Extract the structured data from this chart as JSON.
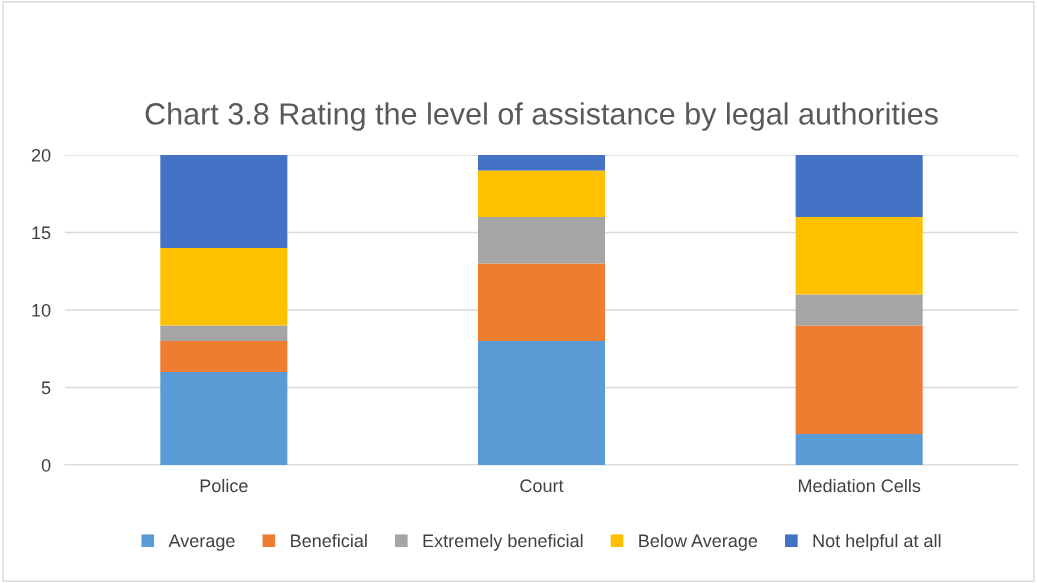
{
  "chart_data": {
    "type": "bar",
    "title": "Chart 3.8 Rating the level of assistance by legal authorities",
    "categories": [
      "Police",
      "Court",
      "Mediation Cells"
    ],
    "stacked": true,
    "series": [
      {
        "name": "Average",
        "color": "#5b9bd5",
        "values": [
          6,
          8,
          2
        ]
      },
      {
        "name": "Beneficial",
        "color": "#ed7d31",
        "values": [
          2,
          5,
          7
        ]
      },
      {
        "name": "Extremely beneficial",
        "color": "#a5a5a5",
        "values": [
          1,
          3,
          2
        ]
      },
      {
        "name": "Below Average",
        "color": "#ffc000",
        "values": [
          5,
          3,
          5
        ]
      },
      {
        "name": "Not helpful at all",
        "color": "#4472c4",
        "values": [
          6,
          1,
          4
        ]
      }
    ],
    "ylim": [
      0,
      20
    ],
    "yticks": [
      0,
      5,
      10,
      15,
      20
    ],
    "grid": "y",
    "legend": "bottom"
  }
}
